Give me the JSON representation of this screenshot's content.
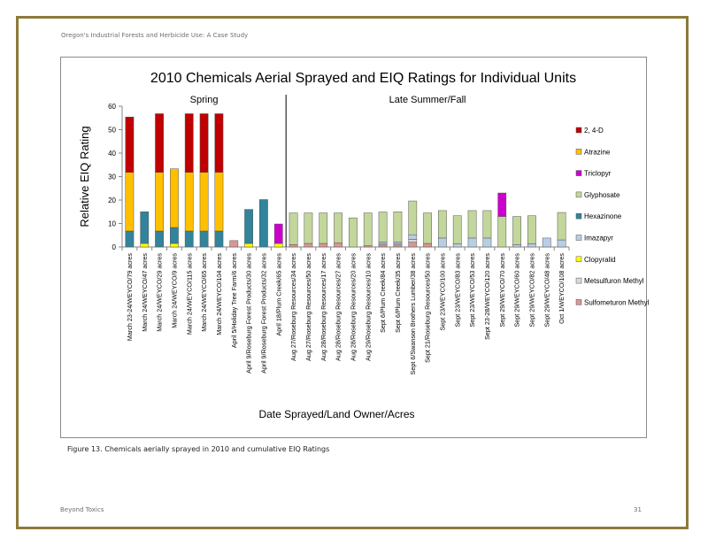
{
  "document": {
    "header": "Oregon's Industrial Forests and Herbicide Use: A Case Study",
    "caption": "Figure 13.  Chemicals aerially sprayed in 2010 and cumulative EIQ Ratings",
    "footer_left": "Beyond Toxics",
    "page_number": "31"
  },
  "chart_data": {
    "type": "bar",
    "stacked": true,
    "title": "2010  Chemicals Aerial Sprayed and EIQ Ratings for Individual Units",
    "xlabel": "Date Sprayed/Land Owner/Acres",
    "ylabel": "Relative EIQ Rating",
    "ylim": [
      0,
      60
    ],
    "yticks": [
      0,
      10,
      20,
      30,
      40,
      50,
      60
    ],
    "grid": false,
    "legend_position": "right",
    "section_labels": [
      "Spring",
      "Late Summer/Fall"
    ],
    "section_divider_after_category": 11,
    "categories": [
      "March 23-24/WEYCO/79 acres",
      "March 24/WEYCO/47 acres",
      "March 24/WEYCO/29 acres",
      "March 24/WEYCO/9 acres",
      "March 24/WEYCO/115 acres",
      "March 24/WEYCO/65 acres",
      "March 24/WEYCO/104 acres",
      "April 5/Holiday Tree Farm/6 acres",
      "April 9/Roseburg Forest Products/30 acres",
      "April 9/Roseburg Forest Products/32 acres",
      "April 18/Plum Creek/65 acres",
      "Aug 27/Roseburg Resources/34 acres",
      "Aug 27/Roseburg Resources/50 acres",
      "Aug 28/Roseburg Resources/17 acres",
      "Aug 28/Roseburg Resources/27 acres",
      "Aug 28/Roseburg Resources/20 acres",
      "Aug 29/Roseburg Resources/10 acres",
      "Sept 6/Plum Creek/84 acres",
      "Sept 6/Plum Creek/35 acres",
      "Sept 6/Swanson Brothers Lumber/38 acres",
      "Sept 21/Roseburg Resources/50 acres",
      "Sept 23/WEYCO/100 acres",
      "Sept 23/WEYCO/83 acres",
      "Sept 23/WEYCO/53 acres",
      "Sept 23-28/WEYCO/120 acres",
      "Sept 29/WEYCO/70 acres",
      "Sept 29/WEYCO/60 acres",
      "Sept 29/WEYCO/82 acres",
      "Sept 29/WEYCO/48 acres",
      "Oct 1/WEYCO/108 acres"
    ],
    "series": [
      {
        "name": "Sulfometuron Methyl",
        "color": "#d99694",
        "values": [
          0,
          0,
          0,
          0,
          0,
          0,
          0,
          2.7,
          0,
          0,
          0,
          1,
          1.5,
          1.5,
          1.8,
          0,
          0.5,
          0.8,
          0.8,
          2,
          1.5,
          0,
          0,
          0,
          0,
          0,
          0,
          0,
          0,
          0
        ]
      },
      {
        "name": "Metsulfuron Methyl",
        "color": "#d9d9d9",
        "values": [
          0,
          0,
          0,
          0,
          0,
          0,
          0,
          0,
          0,
          0,
          0,
          0,
          0,
          0,
          0,
          0,
          0,
          0.5,
          0.5,
          1.2,
          0,
          0,
          0,
          0,
          0,
          0,
          0,
          0,
          0,
          0
        ]
      },
      {
        "name": "Clopyralid",
        "color": "#ffff00",
        "values": [
          0,
          1.5,
          0,
          1.5,
          0,
          0,
          0,
          0,
          1.5,
          0,
          1.5,
          0,
          0,
          0,
          0,
          0,
          0,
          0,
          0,
          0,
          0,
          0,
          0,
          0,
          0,
          0,
          0,
          0,
          0,
          0
        ]
      },
      {
        "name": "Imazapyr",
        "color": "#b9cde5",
        "values": [
          0,
          0,
          0,
          0,
          0,
          0,
          0,
          0,
          0,
          0,
          0,
          0,
          0,
          0,
          0,
          0,
          0,
          0.8,
          0.8,
          2,
          0,
          3.8,
          1.3,
          3.8,
          3.8,
          0,
          1,
          1.3,
          3.8,
          3
        ]
      },
      {
        "name": "Hexazinone",
        "color": "#31849b",
        "values": [
          6.8,
          13.5,
          6.8,
          6.8,
          6.8,
          6.8,
          6.8,
          0,
          14.5,
          20.2,
          0,
          0,
          0,
          0,
          0,
          0,
          0,
          0,
          0,
          0,
          0,
          0,
          0,
          0,
          0,
          0,
          0,
          0,
          0,
          0
        ]
      },
      {
        "name": "Glyphosate",
        "color": "#c3d69b",
        "values": [
          0,
          0,
          0,
          0,
          0,
          0,
          0,
          0,
          0,
          0,
          0,
          13.5,
          13,
          13,
          12.7,
          12.4,
          14,
          12.8,
          12.9,
          14.4,
          13,
          11.7,
          12,
          11.7,
          11.7,
          13,
          12,
          12,
          0,
          11.7
        ]
      },
      {
        "name": "Triclopyr",
        "color": "#cc00cc",
        "values": [
          0,
          0,
          0,
          0,
          0,
          0,
          0,
          0,
          0,
          0,
          8.3,
          0,
          0,
          0,
          0,
          0,
          0,
          0,
          0,
          0,
          0,
          0,
          0,
          0,
          0,
          10,
          0,
          0,
          0,
          0
        ]
      },
      {
        "name": "Atrazine",
        "color": "#ffc000",
        "values": [
          25,
          0,
          25,
          25,
          25,
          25,
          25,
          0,
          0,
          0,
          0,
          0,
          0,
          0,
          0,
          0,
          0,
          0,
          0,
          0,
          0,
          0,
          0,
          0,
          0,
          0,
          0,
          0,
          0,
          0
        ]
      },
      {
        "name": "2, 4-D",
        "color": "#c00000",
        "values": [
          23.6,
          0,
          25,
          0,
          25,
          25,
          25,
          0,
          0,
          0,
          0,
          0,
          0,
          0,
          0,
          0,
          0,
          0,
          0,
          0,
          0,
          0,
          0,
          0,
          0,
          0,
          0,
          0,
          0,
          0
        ]
      }
    ],
    "legend_order": [
      "2, 4-D",
      "Atrazine",
      "Triclopyr",
      "Glyphosate",
      "Hexazinone",
      "Imazapyr",
      "Clopyralid",
      "Metsulfuron Methyl",
      "Sulfometuron Methyl"
    ]
  }
}
